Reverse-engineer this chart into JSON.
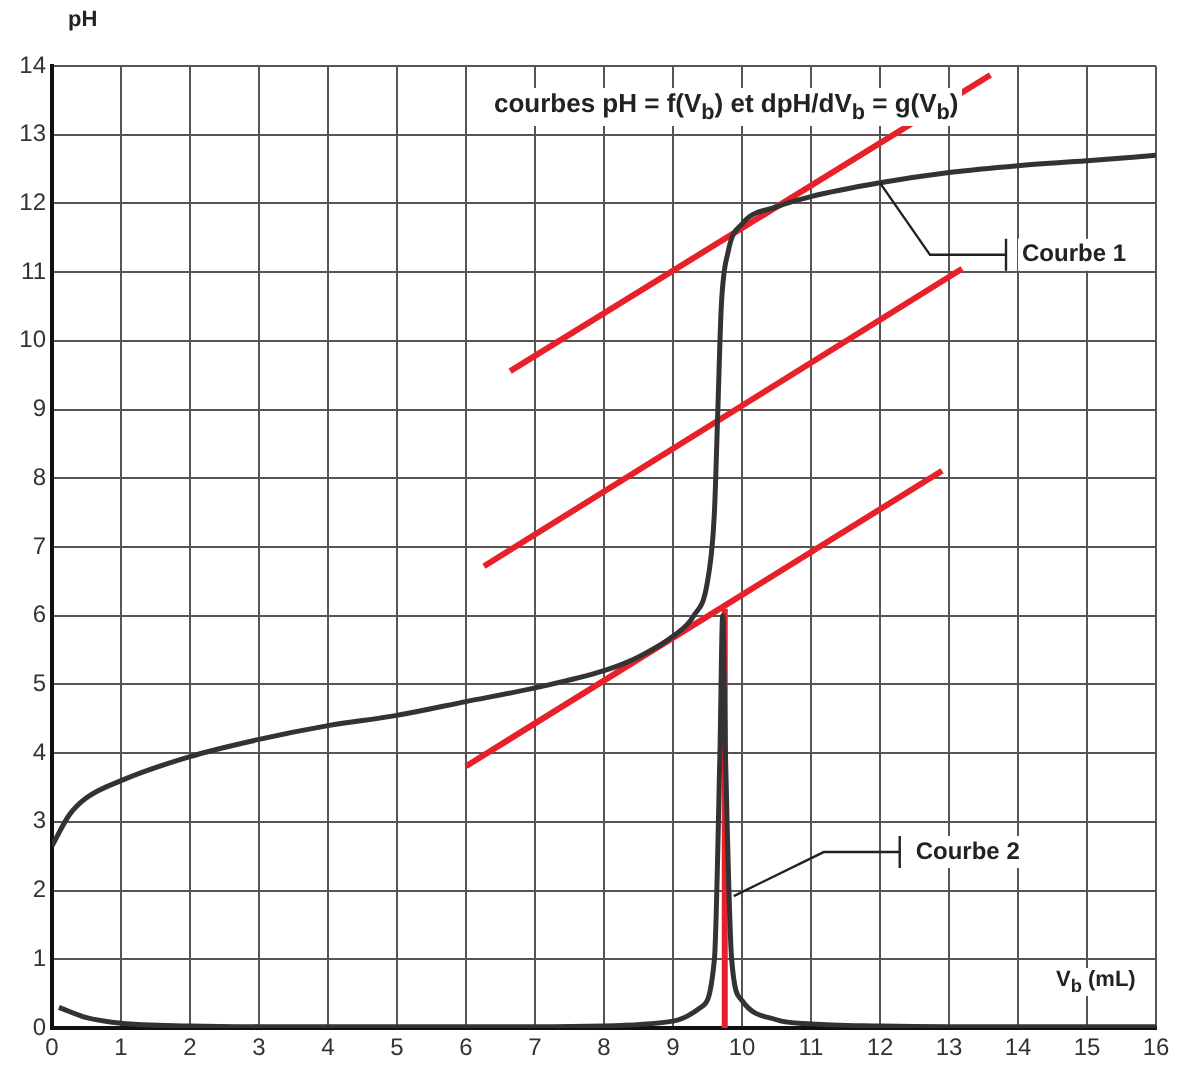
{
  "chart_data": {
    "type": "line",
    "title": "courbes pH = f(V$_{b}$) et dpH/dV$_{b}$ = g(V$_{b}$)",
    "xlabel": "V$_{b}$ (mL)",
    "ylabel": "pH",
    "xlim": [
      0,
      16
    ],
    "ylim": [
      0,
      14
    ],
    "xticks": [
      0,
      1,
      2,
      3,
      4,
      5,
      6,
      7,
      8,
      9,
      10,
      11,
      12,
      13,
      14,
      15,
      16
    ],
    "yticks": [
      0,
      1,
      2,
      3,
      4,
      5,
      6,
      7,
      8,
      9,
      10,
      11,
      12,
      13,
      14
    ],
    "grid": true,
    "legend": false,
    "marker": "none",
    "line_style": "solid",
    "series": [
      {
        "color": "#333333",
        "x": [
          0,
          0.25,
          0.5,
          1,
          2,
          3,
          4,
          5,
          6,
          7,
          8,
          8.5,
          9,
          9.3,
          9.5,
          9.6,
          9.65,
          9.7,
          9.8,
          10,
          10.5,
          11,
          12,
          13,
          14,
          15,
          16
        ],
        "values": [
          2.65,
          3.1,
          3.35,
          3.6,
          3.95,
          4.2,
          4.4,
          4.55,
          4.75,
          4.95,
          5.2,
          5.4,
          5.7,
          6.0,
          6.5,
          7.5,
          9,
          10.5,
          11.3,
          11.7,
          11.95,
          12.1,
          12.3,
          12.45,
          12.55,
          12.62,
          12.7
        ]
      },
      {
        "color": "#333333",
        "x": [
          0.1,
          0.5,
          1,
          2,
          3,
          4,
          5,
          6,
          7,
          8,
          9,
          9.4,
          9.6,
          9.68,
          9.72,
          9.76,
          9.85,
          10,
          10.5,
          11,
          12,
          13,
          14,
          15,
          16
        ],
        "values": [
          0.3,
          0.15,
          0.07,
          0.03,
          0.02,
          0.02,
          0.02,
          0.02,
          0.02,
          0.03,
          0.1,
          0.3,
          1,
          4,
          6,
          4,
          1,
          0.4,
          0.12,
          0.06,
          0.03,
          0.02,
          0.02,
          0.02,
          0.02
        ]
      },
      {
        "color": "#e8202a",
        "x": [
          6.64,
          13.6
        ],
        "values": [
          9.56,
          13.87
        ]
      },
      {
        "color": "#e8202a",
        "x": [
          6.26,
          13.19
        ],
        "values": [
          6.72,
          11.05
        ]
      },
      {
        "color": "#e8202a",
        "x": [
          6.0,
          12.9
        ],
        "values": [
          3.81,
          8.11
        ]
      },
      {
        "color": "#e8202a",
        "x": [
          9.75,
          9.75
        ],
        "values": [
          0,
          6.1
        ]
      }
    ],
    "annotations": [
      {
        "text": "Courbe 1",
        "x": 12,
        "y": 12.3
      },
      {
        "text": "Courbe 2",
        "x": 9.88,
        "y": 1.92
      }
    ]
  }
}
